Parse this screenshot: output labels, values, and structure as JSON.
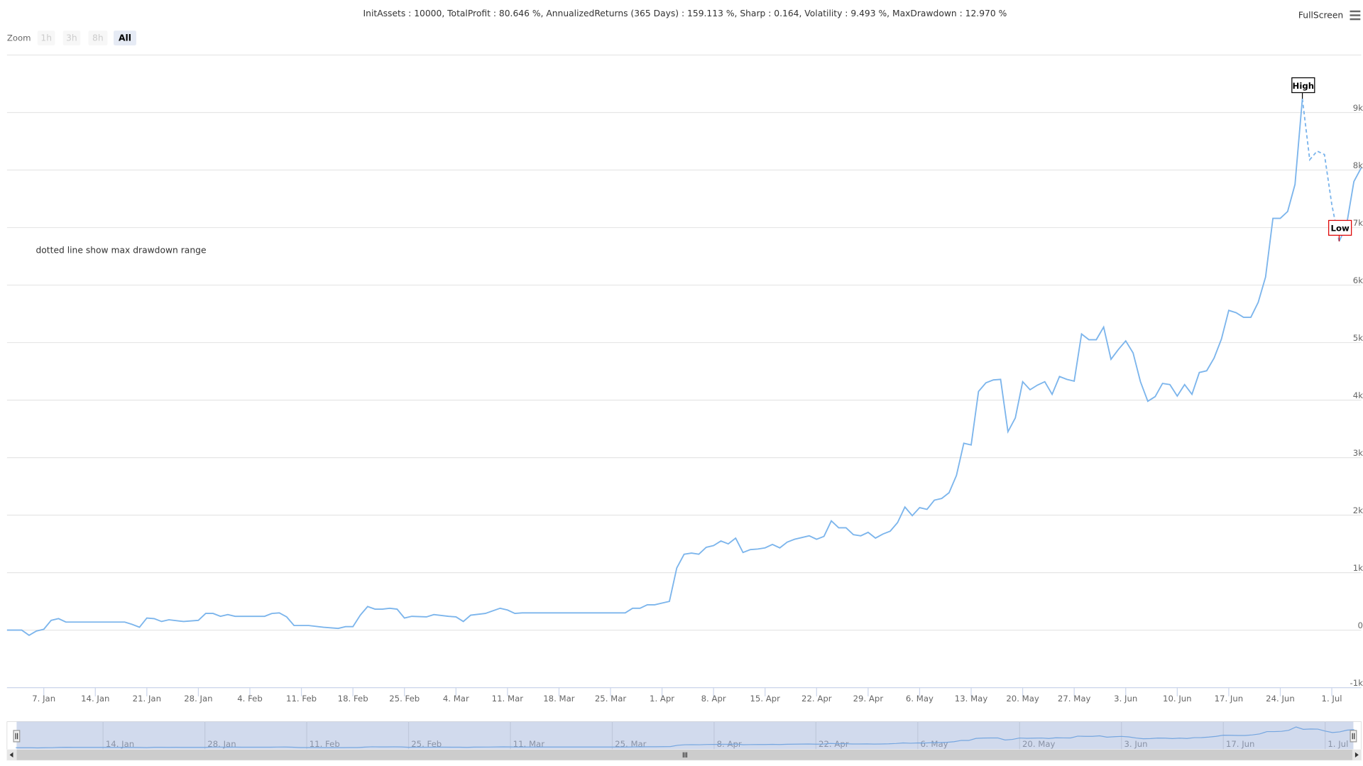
{
  "header": {
    "stats": "InitAssets : 10000, TotalProfit : 80.646 %, AnnualizedReturns (365 Days) : 159.113 %, Sharp : 0.164, Volatility : 9.493 %, MaxDrawdown : 12.970 %",
    "zoom_label": "Zoom",
    "zoom_buttons": [
      "1h",
      "3h",
      "8h",
      "All"
    ],
    "active_zoom": "All",
    "fullscreen": "FullScreen"
  },
  "chart_data": {
    "type": "line",
    "color": "#7cb5ec",
    "grid": true,
    "note": "dotted line show max drawdown range",
    "x": [
      "01-02",
      "01-04",
      "01-05",
      "01-06",
      "01-07",
      "01-08",
      "01-09",
      "01-10",
      "01-18",
      "01-19",
      "01-20",
      "01-21",
      "01-22",
      "01-23",
      "01-24",
      "01-26",
      "01-28",
      "01-29",
      "01-30",
      "01-31",
      "02-01",
      "02-02",
      "02-06",
      "02-07",
      "02-08",
      "02-09",
      "02-10",
      "02-12",
      "02-14",
      "02-16",
      "02-17",
      "02-18",
      "02-19",
      "02-20",
      "02-21",
      "02-22",
      "02-23",
      "02-24",
      "02-25",
      "02-26",
      "02-28",
      "03-01",
      "03-03",
      "03-04",
      "03-05",
      "03-06",
      "03-08",
      "03-10",
      "03-11",
      "03-12",
      "03-13",
      "03-27",
      "03-28",
      "03-29",
      "03-30",
      "03-31",
      "04-01",
      "04-02",
      "04-03",
      "04-04",
      "04-05",
      "04-06",
      "04-07",
      "04-08",
      "04-09",
      "04-10",
      "04-11",
      "04-12",
      "04-13",
      "04-14",
      "04-15",
      "04-16",
      "04-17",
      "04-18",
      "04-19",
      "04-20",
      "04-21",
      "04-22",
      "04-23",
      "04-24",
      "04-25",
      "04-26",
      "04-27",
      "04-28",
      "04-29",
      "04-30",
      "05-01",
      "05-02",
      "05-03",
      "05-04",
      "05-05",
      "05-06",
      "05-07",
      "05-08",
      "05-09",
      "05-10",
      "05-11",
      "05-12",
      "05-13",
      "05-14",
      "05-15",
      "05-16",
      "05-17",
      "05-18",
      "05-19",
      "05-20",
      "05-21",
      "05-22",
      "05-23",
      "05-24",
      "05-25",
      "05-26",
      "05-27",
      "05-28",
      "05-29",
      "05-30",
      "05-31",
      "06-01",
      "06-02",
      "06-03",
      "06-04",
      "06-05",
      "06-06",
      "06-07",
      "06-08",
      "06-09",
      "06-10",
      "06-11",
      "06-12",
      "06-13",
      "06-14",
      "06-15",
      "06-16",
      "06-17",
      "06-18",
      "06-19",
      "06-20",
      "06-21",
      "06-22",
      "06-23",
      "06-24",
      "06-25",
      "06-26",
      "06-27",
      "06-28",
      "06-29",
      "06-30",
      "07-01",
      "07-02",
      "07-03",
      "07-04",
      "07-05"
    ],
    "values": [
      0,
      0,
      -90,
      -15,
      15,
      170,
      200,
      140,
      140,
      100,
      50,
      210,
      200,
      150,
      180,
      150,
      170,
      290,
      290,
      240,
      270,
      240,
      240,
      290,
      300,
      230,
      80,
      80,
      50,
      30,
      60,
      60,
      260,
      410,
      365,
      365,
      380,
      365,
      210,
      240,
      230,
      270,
      240,
      230,
      150,
      260,
      290,
      380,
      350,
      290,
      300,
      300,
      380,
      380,
      440,
      440,
      470,
      500,
      1080,
      1320,
      1340,
      1320,
      1440,
      1470,
      1550,
      1500,
      1600,
      1350,
      1400,
      1410,
      1430,
      1490,
      1430,
      1530,
      1580,
      1610,
      1640,
      1580,
      1630,
      1900,
      1780,
      1780,
      1660,
      1640,
      1700,
      1600,
      1670,
      1720,
      1870,
      2140,
      1990,
      2130,
      2100,
      2260,
      2290,
      2390,
      2690,
      3250,
      3220,
      4150,
      4300,
      4350,
      4360,
      3450,
      3690,
      4320,
      4180,
      4260,
      4320,
      4100,
      4410,
      4360,
      4330,
      5150,
      5050,
      5050,
      5270,
      4710,
      4880,
      5030,
      4820,
      4320,
      3980,
      4060,
      4290,
      4270,
      4070,
      4270,
      4100,
      4480,
      4510,
      4730,
      5060,
      5560,
      5520,
      5440,
      5440,
      5700,
      6140,
      7160,
      7160,
      7280,
      7750,
      9240,
      8180,
      8330,
      8270,
      7400,
      6760,
      7040,
      7800,
      8040
    ],
    "drawdown": {
      "start": "06-27",
      "end": "07-02"
    },
    "flags": [
      {
        "x": "06-27",
        "text": "High",
        "color": "#000000"
      },
      {
        "x": "07-02",
        "text": "Low",
        "color": "#dd0000"
      }
    ],
    "xlim": [
      "01-02",
      "07-05"
    ],
    "ylim": [
      -1000,
      10000
    ],
    "yticks": [
      {
        "value": -1000,
        "label": "-1k"
      },
      0,
      {
        "value": 1000,
        "label": "1k"
      },
      {
        "value": 2000,
        "label": "2k"
      },
      {
        "value": 3000,
        "label": "3k"
      },
      {
        "value": 4000,
        "label": "4k"
      },
      {
        "value": 5000,
        "label": "5k"
      },
      {
        "value": 6000,
        "label": "6k"
      },
      {
        "value": 7000,
        "label": "7k"
      },
      {
        "value": 8000,
        "label": "8k"
      },
      {
        "value": 9000,
        "label": "9k"
      }
    ],
    "xticks": [
      {
        "value": "01-07",
        "label": "7. Jan"
      },
      {
        "value": "01-14",
        "label": "14. Jan"
      },
      {
        "value": "01-21",
        "label": "21. Jan"
      },
      {
        "value": "01-28",
        "label": "28. Jan"
      },
      {
        "value": "02-04",
        "label": "4. Feb"
      },
      {
        "value": "02-11",
        "label": "11. Feb"
      },
      {
        "value": "02-18",
        "label": "18. Feb"
      },
      {
        "value": "02-25",
        "label": "25. Feb"
      },
      {
        "value": "03-04",
        "label": "4. Mar"
      },
      {
        "value": "03-11",
        "label": "11. Mar"
      },
      {
        "value": "03-18",
        "label": "18. Mar"
      },
      {
        "value": "03-25",
        "label": "25. Mar"
      },
      {
        "value": "04-01",
        "label": "1. Apr"
      },
      {
        "value": "04-08",
        "label": "8. Apr"
      },
      {
        "value": "04-15",
        "label": "15. Apr"
      },
      {
        "value": "04-22",
        "label": "22. Apr"
      },
      {
        "value": "04-29",
        "label": "29. Apr"
      },
      {
        "value": "05-06",
        "label": "6. May"
      },
      {
        "value": "05-13",
        "label": "13. May"
      },
      {
        "value": "05-20",
        "label": "20. May"
      },
      {
        "value": "05-27",
        "label": "27. May"
      },
      {
        "value": "06-03",
        "label": "3. Jun"
      },
      {
        "value": "06-10",
        "label": "10. Jun"
      },
      {
        "value": "06-17",
        "label": "17. Jun"
      },
      {
        "value": "06-24",
        "label": "24. Jun"
      },
      {
        "value": "07-01",
        "label": "1. Jul"
      }
    ],
    "navigator": {
      "xticks": [
        {
          "value": "01-14",
          "label": "14. Jan"
        },
        {
          "value": "01-28",
          "label": "28. Jan"
        },
        {
          "value": "02-11",
          "label": "11. Feb"
        },
        {
          "value": "02-25",
          "label": "25. Feb"
        },
        {
          "value": "03-11",
          "label": "11. Mar"
        },
        {
          "value": "03-25",
          "label": "25. Mar"
        },
        {
          "value": "04-08",
          "label": "8. Apr"
        },
        {
          "value": "04-22",
          "label": "22. Apr"
        },
        {
          "value": "05-06",
          "label": "6. May"
        },
        {
          "value": "05-20",
          "label": "20. May"
        },
        {
          "value": "06-03",
          "label": "3. Jun"
        },
        {
          "value": "06-17",
          "label": "17. Jun"
        },
        {
          "value": "07-01",
          "label": "1. Jul"
        }
      ]
    }
  }
}
